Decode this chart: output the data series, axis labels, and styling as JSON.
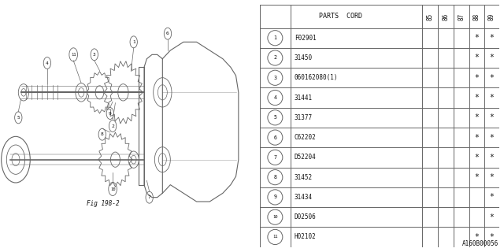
{
  "catalog_code": "A160B00056",
  "fig_label": "Fig 198-2",
  "table_header_years": [
    "85",
    "86",
    "87",
    "88",
    "89"
  ],
  "rows": [
    {
      "num": "1",
      "code": "F02901",
      "cols": [
        "",
        "",
        "",
        "*",
        "*"
      ]
    },
    {
      "num": "2",
      "code": "31450",
      "cols": [
        "",
        "",
        "",
        "*",
        "*"
      ]
    },
    {
      "num": "3",
      "code": "060162080(1)",
      "cols": [
        "",
        "",
        "",
        "*",
        "*"
      ]
    },
    {
      "num": "4",
      "code": "31441",
      "cols": [
        "",
        "",
        "",
        "*",
        "*"
      ]
    },
    {
      "num": "5",
      "code": "31377",
      "cols": [
        "",
        "",
        "",
        "*",
        "*"
      ]
    },
    {
      "num": "6",
      "code": "C62202",
      "cols": [
        "",
        "",
        "",
        "*",
        "*"
      ]
    },
    {
      "num": "7",
      "code": "D52204",
      "cols": [
        "",
        "",
        "",
        "*",
        "*"
      ]
    },
    {
      "num": "8",
      "code": "31452",
      "cols": [
        "",
        "",
        "",
        "*",
        "*"
      ]
    },
    {
      "num": "9",
      "code": "31434",
      "cols": [
        "",
        "",
        "",
        "",
        "*"
      ]
    },
    {
      "num": "10",
      "code": "D02506",
      "cols": [
        "",
        "",
        "",
        "",
        "*"
      ]
    },
    {
      "num": "11",
      "code": "H02102",
      "cols": [
        "",
        "",
        "",
        "*",
        "*"
      ]
    }
  ],
  "bg_color": "#ffffff",
  "line_color": "#666666",
  "text_color": "#111111"
}
